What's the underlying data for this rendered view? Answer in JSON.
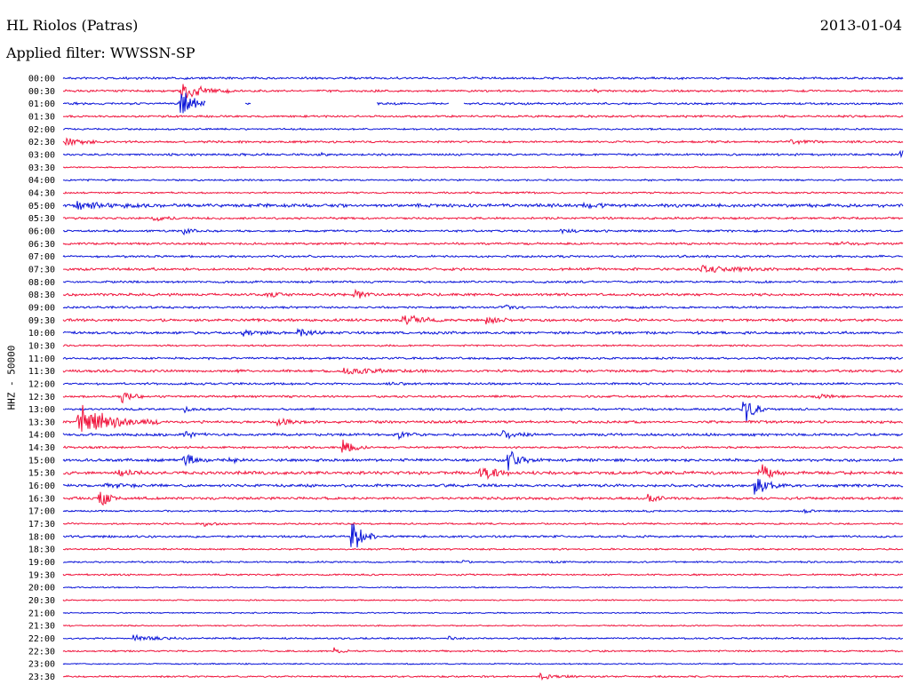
{
  "header": {
    "station": "HL Riolos (Patras)",
    "date": "2013-01-04",
    "filter_text": "Applied filter: WWSSN-SP"
  },
  "chart_data": {
    "type": "line",
    "title": "HL Riolos (Patras)",
    "subtitle": "Applied filter: WWSSN-SP",
    "date": "2013-01-04",
    "ylabel": "HHZ - 50000",
    "xlabel": "",
    "grid": false,
    "x_range_minutes": [
      0,
      30
    ],
    "colors": {
      "even": "#0a14d8",
      "odd": "#f0143c"
    },
    "rows": [
      {
        "label": "00:00",
        "amp": 1.0,
        "events": []
      },
      {
        "label": "00:30",
        "amp": 1.0,
        "events": [
          {
            "t": 4.2,
            "a": 18,
            "d": 0.6
          },
          {
            "t": 19.0,
            "a": 2,
            "d": 0.3
          }
        ]
      },
      {
        "label": "01:00",
        "amp": 1.0,
        "events": [
          {
            "t": 4.2,
            "a": 24,
            "d": 0.4
          }
        ],
        "gaps": [
          [
            5.1,
            6.5
          ],
          [
            6.7,
            11.2
          ],
          [
            13.8,
            14.3
          ]
        ]
      },
      {
        "label": "01:30",
        "amp": 1.0,
        "events": []
      },
      {
        "label": "02:00",
        "amp": 0.8,
        "events": [
          {
            "t": 26.2,
            "a": 2,
            "d": 0.1
          }
        ]
      },
      {
        "label": "02:30",
        "amp": 1.0,
        "events": [
          {
            "t": 0.1,
            "a": 6,
            "d": 0.5
          },
          {
            "t": 26.0,
            "a": 3,
            "d": 0.6
          }
        ]
      },
      {
        "label": "03:00",
        "amp": 1.0,
        "events": [
          {
            "t": 9.0,
            "a": 2,
            "d": 0.5
          },
          {
            "t": 29.9,
            "a": 15,
            "d": 0.15
          }
        ]
      },
      {
        "label": "03:30",
        "amp": 0.6,
        "events": []
      },
      {
        "label": "04:00",
        "amp": 0.8,
        "events": []
      },
      {
        "label": "04:30",
        "amp": 0.8,
        "events": []
      },
      {
        "label": "05:00",
        "amp": 1.5,
        "events": [
          {
            "t": 0.5,
            "a": 5,
            "d": 1.0
          },
          {
            "t": 18.6,
            "a": 5,
            "d": 0.4
          }
        ]
      },
      {
        "label": "05:30",
        "amp": 1.0,
        "events": [
          {
            "t": 3.2,
            "a": 3,
            "d": 0.5
          }
        ]
      },
      {
        "label": "06:00",
        "amp": 1.0,
        "events": [
          {
            "t": 4.3,
            "a": 4,
            "d": 0.3
          },
          {
            "t": 17.8,
            "a": 3,
            "d": 0.4
          }
        ]
      },
      {
        "label": "06:30",
        "amp": 1.0,
        "events": [
          {
            "t": 27.8,
            "a": 3,
            "d": 0.4
          }
        ]
      },
      {
        "label": "07:00",
        "amp": 1.0,
        "events": []
      },
      {
        "label": "07:30",
        "amp": 1.2,
        "events": [
          {
            "t": 22.8,
            "a": 4,
            "d": 1.2
          }
        ]
      },
      {
        "label": "08:00",
        "amp": 1.0,
        "events": []
      },
      {
        "label": "08:30",
        "amp": 1.2,
        "events": [
          {
            "t": 10.4,
            "a": 8,
            "d": 0.3
          },
          {
            "t": 7.3,
            "a": 3,
            "d": 0.3
          }
        ]
      },
      {
        "label": "09:00",
        "amp": 1.0,
        "events": [
          {
            "t": 15.8,
            "a": 4,
            "d": 0.3
          }
        ]
      },
      {
        "label": "09:30",
        "amp": 1.2,
        "events": [
          {
            "t": 12.1,
            "a": 9,
            "d": 0.5
          },
          {
            "t": 15.1,
            "a": 5,
            "d": 0.5
          }
        ]
      },
      {
        "label": "10:00",
        "amp": 1.2,
        "events": [
          {
            "t": 6.4,
            "a": 4,
            "d": 0.5
          },
          {
            "t": 8.4,
            "a": 5,
            "d": 0.4
          }
        ]
      },
      {
        "label": "10:30",
        "amp": 0.8,
        "events": []
      },
      {
        "label": "11:00",
        "amp": 1.0,
        "events": []
      },
      {
        "label": "11:30",
        "amp": 1.2,
        "events": [
          {
            "t": 10.0,
            "a": 4,
            "d": 1.0
          }
        ]
      },
      {
        "label": "12:00",
        "amp": 1.0,
        "events": [
          {
            "t": 11.5,
            "a": 2,
            "d": 0.6
          }
        ]
      },
      {
        "label": "12:30",
        "amp": 1.0,
        "events": [
          {
            "t": 2.1,
            "a": 8,
            "d": 0.3
          },
          {
            "t": 26.9,
            "a": 4,
            "d": 0.4
          }
        ]
      },
      {
        "label": "13:00",
        "amp": 1.0,
        "events": [
          {
            "t": 24.3,
            "a": 26,
            "d": 0.3
          },
          {
            "t": 4.3,
            "a": 4,
            "d": 0.3
          }
        ]
      },
      {
        "label": "13:30",
        "amp": 1.2,
        "events": [
          {
            "t": 0.5,
            "a": 24,
            "d": 1.0
          },
          {
            "t": 7.6,
            "a": 8,
            "d": 0.3
          }
        ]
      },
      {
        "label": "14:00",
        "amp": 1.2,
        "events": [
          {
            "t": 12.0,
            "a": 6,
            "d": 0.3
          },
          {
            "t": 15.7,
            "a": 6,
            "d": 0.4
          },
          {
            "t": 4.3,
            "a": 5,
            "d": 0.3
          }
        ]
      },
      {
        "label": "14:30",
        "amp": 1.0,
        "events": [
          {
            "t": 10.0,
            "a": 14,
            "d": 0.3
          }
        ]
      },
      {
        "label": "15:00",
        "amp": 1.3,
        "events": [
          {
            "t": 4.3,
            "a": 12,
            "d": 0.3
          },
          {
            "t": 15.9,
            "a": 12,
            "d": 0.4
          },
          {
            "t": 5.9,
            "a": 4,
            "d": 0.3
          }
        ]
      },
      {
        "label": "15:30",
        "amp": 1.5,
        "events": [
          {
            "t": 14.9,
            "a": 14,
            "d": 0.4
          },
          {
            "t": 2.0,
            "a": 6,
            "d": 0.3
          },
          {
            "t": 24.9,
            "a": 14,
            "d": 0.3
          }
        ]
      },
      {
        "label": "16:00",
        "amp": 1.3,
        "events": [
          {
            "t": 24.7,
            "a": 16,
            "d": 0.4
          },
          {
            "t": 1.5,
            "a": 4,
            "d": 0.5
          }
        ]
      },
      {
        "label": "16:30",
        "amp": 1.2,
        "events": [
          {
            "t": 1.3,
            "a": 12,
            "d": 0.3
          },
          {
            "t": 20.9,
            "a": 5,
            "d": 0.4
          }
        ]
      },
      {
        "label": "17:00",
        "amp": 0.8,
        "events": [
          {
            "t": 26.5,
            "a": 2,
            "d": 0.3
          }
        ]
      },
      {
        "label": "17:30",
        "amp": 0.8,
        "events": [
          {
            "t": 5.0,
            "a": 3,
            "d": 0.3
          }
        ]
      },
      {
        "label": "18:00",
        "amp": 1.0,
        "events": [
          {
            "t": 10.3,
            "a": 28,
            "d": 0.3
          }
        ]
      },
      {
        "label": "18:30",
        "amp": 0.8,
        "events": []
      },
      {
        "label": "19:00",
        "amp": 0.8,
        "events": [
          {
            "t": 14.3,
            "a": 2,
            "d": 0.2
          },
          {
            "t": 17.4,
            "a": 2,
            "d": 0.2
          }
        ]
      },
      {
        "label": "19:30",
        "amp": 0.8,
        "events": []
      },
      {
        "label": "20:00",
        "amp": 0.6,
        "events": []
      },
      {
        "label": "20:30",
        "amp": 0.6,
        "events": []
      },
      {
        "label": "21:00",
        "amp": 0.6,
        "events": []
      },
      {
        "label": "21:30",
        "amp": 0.6,
        "events": []
      },
      {
        "label": "22:00",
        "amp": 0.8,
        "events": [
          {
            "t": 2.5,
            "a": 5,
            "d": 0.6
          },
          {
            "t": 13.8,
            "a": 3,
            "d": 0.2
          }
        ]
      },
      {
        "label": "22:30",
        "amp": 0.8,
        "events": [
          {
            "t": 9.7,
            "a": 7,
            "d": 0.2
          }
        ]
      },
      {
        "label": "23:00",
        "amp": 0.6,
        "events": []
      },
      {
        "label": "23:30",
        "amp": 0.8,
        "events": [
          {
            "t": 17.0,
            "a": 4,
            "d": 0.5
          },
          {
            "t": 29.8,
            "a": 3,
            "d": 0.1
          }
        ]
      }
    ]
  }
}
